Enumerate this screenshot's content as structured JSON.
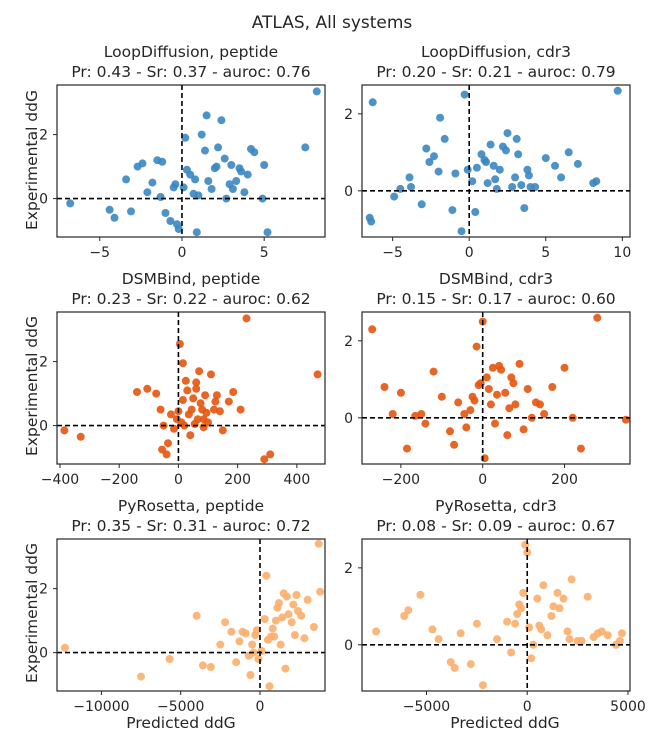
{
  "figure": {
    "title": "ATLAS, All systems",
    "xlabel": "Predicted ddG",
    "ylabel": "Experimental ddG"
  },
  "colors": {
    "loopdiffusion": "#3a87c2",
    "dsmbind": "#e6550d",
    "pyrosetta": "#fdae6b",
    "reference_line": "#000000",
    "frame": "#262626"
  },
  "chart_data": [
    {
      "type": "scatter",
      "title": "LoopDiffusion, peptide",
      "subtitle": "Pr: 0.43 - Sr: 0.37 - auroc: 0.76",
      "color_key": "loopdiffusion",
      "xlim": [
        -7.6,
        8.7
      ],
      "ylim": [
        -1.2,
        3.55
      ],
      "xticks": [
        -5,
        0,
        5
      ],
      "xtick_labels": [
        "−5",
        "0",
        "5"
      ],
      "yticks": [
        0,
        2
      ],
      "ytick_labels": [
        "0",
        "2"
      ],
      "x": [
        -6.8,
        -4.4,
        -4.1,
        -3.1,
        -2.7,
        -2.1,
        -1.8,
        -1.5,
        -1.3,
        -1.0,
        -0.7,
        -0.4,
        -0.3,
        -0.2,
        0.1,
        0.2,
        0.3,
        0.5,
        0.7,
        0.9,
        1.2,
        1.5,
        1.6,
        1.8,
        2.0,
        2.2,
        2.4,
        2.6,
        2.9,
        3.0,
        3.1,
        3.3,
        3.5,
        3.8,
        4.0,
        4.4,
        4.9,
        5.2,
        7.5,
        8.2,
        -3.4,
        -2.4,
        -1.2,
        -0.5,
        0.8,
        1.4,
        2.1,
        2.7,
        3.6,
        4.2,
        5.0,
        1.0
      ],
      "y": [
        -0.15,
        -0.35,
        -0.6,
        -0.4,
        1.0,
        0.2,
        0.5,
        1.2,
        0.05,
        -0.45,
        -0.7,
        0.45,
        -0.8,
        -0.95,
        0.35,
        1.9,
        0.9,
        0.75,
        0.15,
        -1.05,
        2.0,
        2.6,
        0.55,
        0.3,
        0.95,
        1.6,
        2.45,
        1.25,
        0.45,
        1.05,
        0.3,
        0.55,
        0.95,
        0.2,
        0.75,
        1.45,
        0.0,
        -1.05,
        1.6,
        3.35,
        0.6,
        1.1,
        1.15,
        0.35,
        0.6,
        1.5,
        1.0,
        0.0,
        0.85,
        1.55,
        1.05,
        0.1
      ]
    },
    {
      "type": "scatter",
      "title": "LoopDiffusion, cdr3",
      "subtitle": "Pr: 0.20 - Sr: 0.21 - auroc: 0.79",
      "color_key": "loopdiffusion",
      "xlim": [
        -7.0,
        10.5
      ],
      "ylim": [
        -1.2,
        2.75
      ],
      "xticks": [
        -5,
        0,
        5,
        10
      ],
      "xtick_labels": [
        "−5",
        "0",
        "5",
        "10"
      ],
      "yticks": [
        0,
        2
      ],
      "ytick_labels": [
        "0",
        "2"
      ],
      "x": [
        -6.5,
        -6.4,
        -6.3,
        -4.9,
        -4.5,
        -3.9,
        -3.8,
        -3.1,
        -2.8,
        -2.6,
        -2.3,
        -1.9,
        -1.6,
        -1.1,
        -0.5,
        -0.3,
        0.2,
        0.5,
        0.8,
        1.0,
        1.2,
        1.4,
        1.6,
        1.8,
        2.0,
        2.2,
        2.5,
        2.8,
        3.0,
        3.2,
        3.4,
        3.6,
        3.8,
        4.0,
        4.3,
        5.0,
        5.6,
        6.0,
        6.5,
        7.1,
        8.1,
        8.3,
        9.7,
        -0.9,
        0.4,
        1.1,
        2.4,
        3.1,
        3.9,
        -2.0,
        -0.1,
        1.7
      ],
      "y": [
        -0.7,
        -0.8,
        2.3,
        -0.15,
        0.05,
        0.35,
        0.1,
        -0.35,
        1.1,
        0.75,
        0.9,
        1.9,
        1.35,
        -0.5,
        -1.05,
        2.5,
        0.25,
        0.6,
        0.95,
        0.8,
        0.2,
        1.2,
        0.65,
        0.05,
        0.55,
        1.15,
        1.5,
        0.1,
        0.35,
        0.95,
        0.15,
        -0.45,
        0.55,
        0.1,
        0.1,
        0.85,
        0.65,
        0.35,
        1.0,
        0.7,
        0.2,
        0.25,
        2.6,
        0.45,
        -0.55,
        0.75,
        1.05,
        1.35,
        0.4,
        0.5,
        0.55,
        0.3
      ]
    },
    {
      "type": "scatter",
      "title": "DSMBind, peptide",
      "subtitle": "Pr: 0.23 - Sr: 0.22 - auroc: 0.62",
      "color_key": "dsmbind",
      "xlim": [
        -410,
        495
      ],
      "ylim": [
        -1.2,
        3.55
      ],
      "xticks": [
        -400,
        -200,
        0,
        200,
        400
      ],
      "xtick_labels": [
        "−400",
        "−200",
        "0",
        "200",
        "400"
      ],
      "yticks": [
        0,
        2
      ],
      "ytick_labels": [
        "0",
        "2"
      ],
      "x": [
        -385,
        -330,
        -140,
        -105,
        -75,
        -60,
        -55,
        -40,
        -35,
        -25,
        -15,
        -5,
        0,
        5,
        10,
        15,
        20,
        25,
        30,
        35,
        40,
        45,
        50,
        55,
        60,
        65,
        70,
        75,
        80,
        85,
        90,
        95,
        100,
        110,
        120,
        125,
        130,
        140,
        150,
        170,
        185,
        210,
        230,
        290,
        310,
        470,
        60,
        85,
        -50,
        15
      ],
      "y": [
        -0.15,
        -0.35,
        1.05,
        1.15,
        1.0,
        0.5,
        -0.75,
        -0.9,
        -0.55,
        0.35,
        -0.1,
        0.2,
        0.45,
        2.55,
        0.1,
        1.95,
        0.0,
        1.4,
        1.1,
        0.35,
        -0.3,
        0.5,
        0.85,
        0.05,
        1.35,
        0.2,
        1.7,
        0.7,
        0.5,
        -0.05,
        0.95,
        0.4,
        0.1,
        1.6,
        0.5,
        0.75,
        0.95,
        0.45,
        -0.15,
        0.75,
        1.05,
        0.5,
        3.35,
        -1.05,
        -0.9,
        1.6,
        1.15,
        0.2,
        0.0,
        0.8
      ]
    },
    {
      "type": "scatter",
      "title": "DSMBind, cdr3",
      "subtitle": "Pr: 0.15 - Sr: 0.17 - auroc: 0.60",
      "color_key": "dsmbind",
      "xlim": [
        -295,
        360
      ],
      "ylim": [
        -1.2,
        2.75
      ],
      "xticks": [
        -200,
        0,
        200
      ],
      "xtick_labels": [
        "−200",
        "0",
        "200"
      ],
      "yticks": [
        0,
        2
      ],
      "ytick_labels": [
        "0",
        "2"
      ],
      "x": [
        -270,
        -240,
        -220,
        -200,
        -185,
        -165,
        -150,
        -140,
        -120,
        -100,
        -80,
        -70,
        -60,
        -45,
        -40,
        -30,
        -20,
        -15,
        -10,
        -5,
        0,
        5,
        10,
        15,
        20,
        25,
        30,
        40,
        45,
        55,
        60,
        65,
        70,
        80,
        90,
        100,
        110,
        120,
        130,
        140,
        150,
        170,
        200,
        220,
        240,
        280,
        350,
        -25,
        35,
        75
      ],
      "y": [
        2.3,
        0.8,
        0.1,
        0.65,
        -0.8,
        0.05,
        0.1,
        -0.15,
        1.2,
        0.55,
        -0.35,
        -0.7,
        0.4,
        0.1,
        -0.25,
        0.2,
        0.45,
        1.85,
        0.85,
        0.9,
        2.5,
        -1.05,
        1.05,
        0.75,
        0.35,
        1.3,
        -0.15,
        1.35,
        1.25,
        0.65,
        -0.45,
        0.25,
        1.05,
        0.35,
        1.4,
        -0.3,
        0.75,
        0.0,
        0.4,
        0.35,
        0.1,
        0.8,
        1.3,
        0.0,
        -0.8,
        2.6,
        -0.05,
        0.55,
        0.6,
        0.9
      ]
    },
    {
      "type": "scatter",
      "title": "PyRosetta, peptide",
      "subtitle": "Pr: 0.35 - Sr: 0.31 - auroc: 0.72",
      "color_key": "pyrosetta",
      "xlim": [
        -12800,
        4100
      ],
      "ylim": [
        -1.2,
        3.55
      ],
      "xticks": [
        -10000,
        -5000,
        0
      ],
      "xtick_labels": [
        "−10000",
        "−5000",
        "0"
      ],
      "yticks": [
        0,
        2
      ],
      "ytick_labels": [
        "0",
        "2"
      ],
      "x": [
        -12300,
        -7500,
        -5700,
        -4000,
        -3600,
        -3100,
        -2500,
        -2200,
        -1500,
        -1300,
        -1100,
        -900,
        -700,
        -500,
        -400,
        -300,
        -100,
        100,
        300,
        500,
        700,
        800,
        1000,
        1200,
        1300,
        1500,
        1600,
        1800,
        2000,
        2100,
        2300,
        2400,
        2600,
        2800,
        3000,
        3400,
        3700,
        3800,
        -600,
        400,
        1100,
        1700,
        2200,
        -200,
        900,
        1400,
        600,
        -1800
      ],
      "y": [
        0.15,
        -0.75,
        -0.2,
        1.15,
        -0.4,
        -0.45,
        0.25,
        0.95,
        -0.3,
        0.35,
        0.65,
        0.6,
        -0.1,
        0.25,
        0.0,
        0.55,
        -0.2,
        0.05,
        1.05,
        0.4,
        0.5,
        0.75,
        1.0,
        1.55,
        0.25,
        1.85,
        -0.5,
        1.2,
        0.95,
        1.5,
        1.8,
        1.3,
        1.15,
        0.45,
        1.65,
        0.8,
        3.4,
        1.9,
        -0.7,
        2.4,
        1.4,
        1.75,
        0.55,
        0.7,
        0.5,
        1.1,
        -1.05,
        0.65
      ]
    },
    {
      "type": "scatter",
      "title": "PyRosetta, cdr3",
      "subtitle": "Pr: 0.08 - Sr: 0.09 - auroc: 0.67",
      "color_key": "pyrosetta",
      "xlim": [
        -8200,
        5100
      ],
      "ylim": [
        -1.2,
        2.75
      ],
      "xticks": [
        -5000,
        0,
        5000
      ],
      "xtick_labels": [
        "−5000",
        "0",
        "5000"
      ],
      "yticks": [
        0,
        2
      ],
      "ytick_labels": [
        "0",
        "2"
      ],
      "x": [
        -7500,
        -6100,
        -5900,
        -5300,
        -4700,
        -4400,
        -3800,
        -3600,
        -3300,
        -2800,
        -2500,
        -2200,
        -1500,
        -1000,
        -600,
        -500,
        -400,
        -300,
        -200,
        -100,
        0,
        100,
        200,
        300,
        500,
        600,
        800,
        1000,
        1200,
        1500,
        1600,
        1800,
        2000,
        2200,
        2500,
        2700,
        3000,
        3300,
        3500,
        3700,
        4000,
        4400,
        4600,
        4700,
        -800,
        1300,
        2100,
        700
      ],
      "y": [
        0.35,
        0.75,
        0.9,
        1.3,
        0.4,
        0.15,
        -0.45,
        -0.6,
        0.3,
        -0.5,
        0.55,
        -1.05,
        0.15,
        0.6,
        0.55,
        0.8,
        1.05,
        0.95,
        1.35,
        2.6,
        2.4,
        0.45,
        -0.35,
        0.0,
        1.2,
        0.5,
        1.55,
        0.25,
        0.75,
        1.35,
        0.95,
        1.2,
        0.35,
        1.7,
        0.1,
        0.1,
        1.25,
        0.2,
        0.3,
        0.35,
        0.25,
        0.0,
        0.1,
        0.3,
        -0.2,
        1.0,
        0.15,
        0.4
      ]
    }
  ]
}
